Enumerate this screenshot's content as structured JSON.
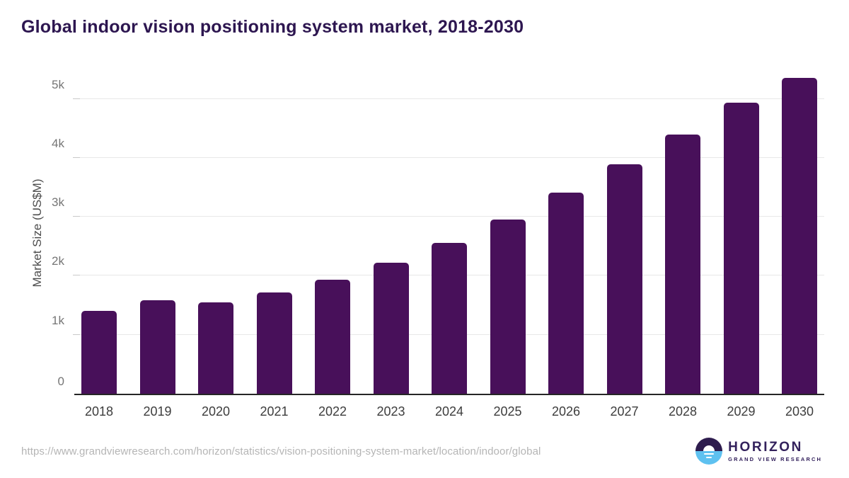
{
  "title": "Global indoor vision positioning system market, 2018-2030",
  "chart_data": {
    "type": "bar",
    "title": "Global indoor vision positioning system market, 2018-2030",
    "categories": [
      "2018",
      "2019",
      "2020",
      "2021",
      "2022",
      "2023",
      "2024",
      "2025",
      "2026",
      "2027",
      "2028",
      "2029",
      "2030"
    ],
    "values": [
      1410,
      1590,
      1550,
      1720,
      1930,
      2220,
      2560,
      2960,
      3410,
      3890,
      4400,
      4930,
      5360
    ],
    "xlabel": "",
    "ylabel": "Market Size (US$M)",
    "ylim": [
      0,
      5500
    ],
    "yticks": [
      {
        "label": "0",
        "value": 0
      },
      {
        "label": "1k",
        "value": 1000
      },
      {
        "label": "2k",
        "value": 2000
      },
      {
        "label": "3k",
        "value": 3000
      },
      {
        "label": "4k",
        "value": 4000
      },
      {
        "label": "5k",
        "value": 5000
      }
    ],
    "grid": true,
    "legend": "none",
    "bar_color": "#48105a"
  },
  "footer": {
    "source_url": "https://www.grandviewresearch.com/horizon/statistics/vision-positioning-system-market/location/indoor/global",
    "logo": {
      "name": "HORIZON",
      "subtitle": "GRAND VIEW RESEARCH"
    }
  },
  "colors": {
    "title": "#2d1650",
    "bar": "#48105a",
    "gridline": "#e8e8e8",
    "axis_line": "#262626",
    "ytick_label": "#757575",
    "xtick_label": "#3d3d3d",
    "url_text": "#b5b5b5",
    "logo_purple": "#33215c",
    "logo_blue": "#5ec1f0"
  }
}
